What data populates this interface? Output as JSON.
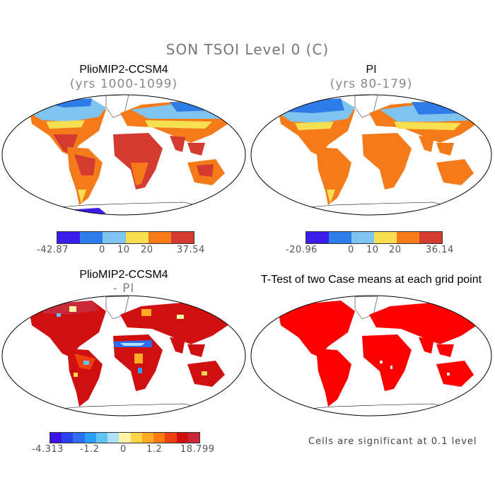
{
  "title": "SON TSOI Level 0 (C)",
  "panels": {
    "top_left": {
      "title": "PlioMIP2-CCSM4",
      "subtitle": "(yrs 1000-1099)",
      "colorbar": {
        "colors": [
          "#3a1de8",
          "#2f7be8",
          "#7fc4ee",
          "#f6e052",
          "#f57a1a",
          "#d33a30"
        ],
        "labels": [
          "-42.87",
          "0",
          "10",
          "20",
          "37.54"
        ]
      }
    },
    "top_right": {
      "title": "PI",
      "subtitle": "(yrs 80-179)",
      "colorbar": {
        "colors": [
          "#3a1de8",
          "#2f7be8",
          "#7fc4ee",
          "#f6e052",
          "#f57a1a",
          "#d33a30"
        ],
        "labels": [
          "-20.96",
          "0",
          "10",
          "20",
          "36.14"
        ]
      }
    },
    "bottom_left": {
      "title": "PlioMIP2-CCSM4",
      "subtitle": "- PI",
      "colorbar": {
        "colors": [
          "#3a12e6",
          "#2a3ff0",
          "#2d6df0",
          "#2b9ef5",
          "#62c3f5",
          "#aee0f7",
          "#fff3a5",
          "#ffd64a",
          "#ffab24",
          "#ff7a10",
          "#f04010",
          "#d01010",
          "#c82838"
        ],
        "labels": [
          "-4.313",
          "-1.2",
          "0",
          "1.2",
          "18.799"
        ]
      }
    },
    "bottom_right": {
      "title": "T-Test of two Case means at each grid point",
      "footnote": "Cells are significant at 0.1 level"
    }
  }
}
